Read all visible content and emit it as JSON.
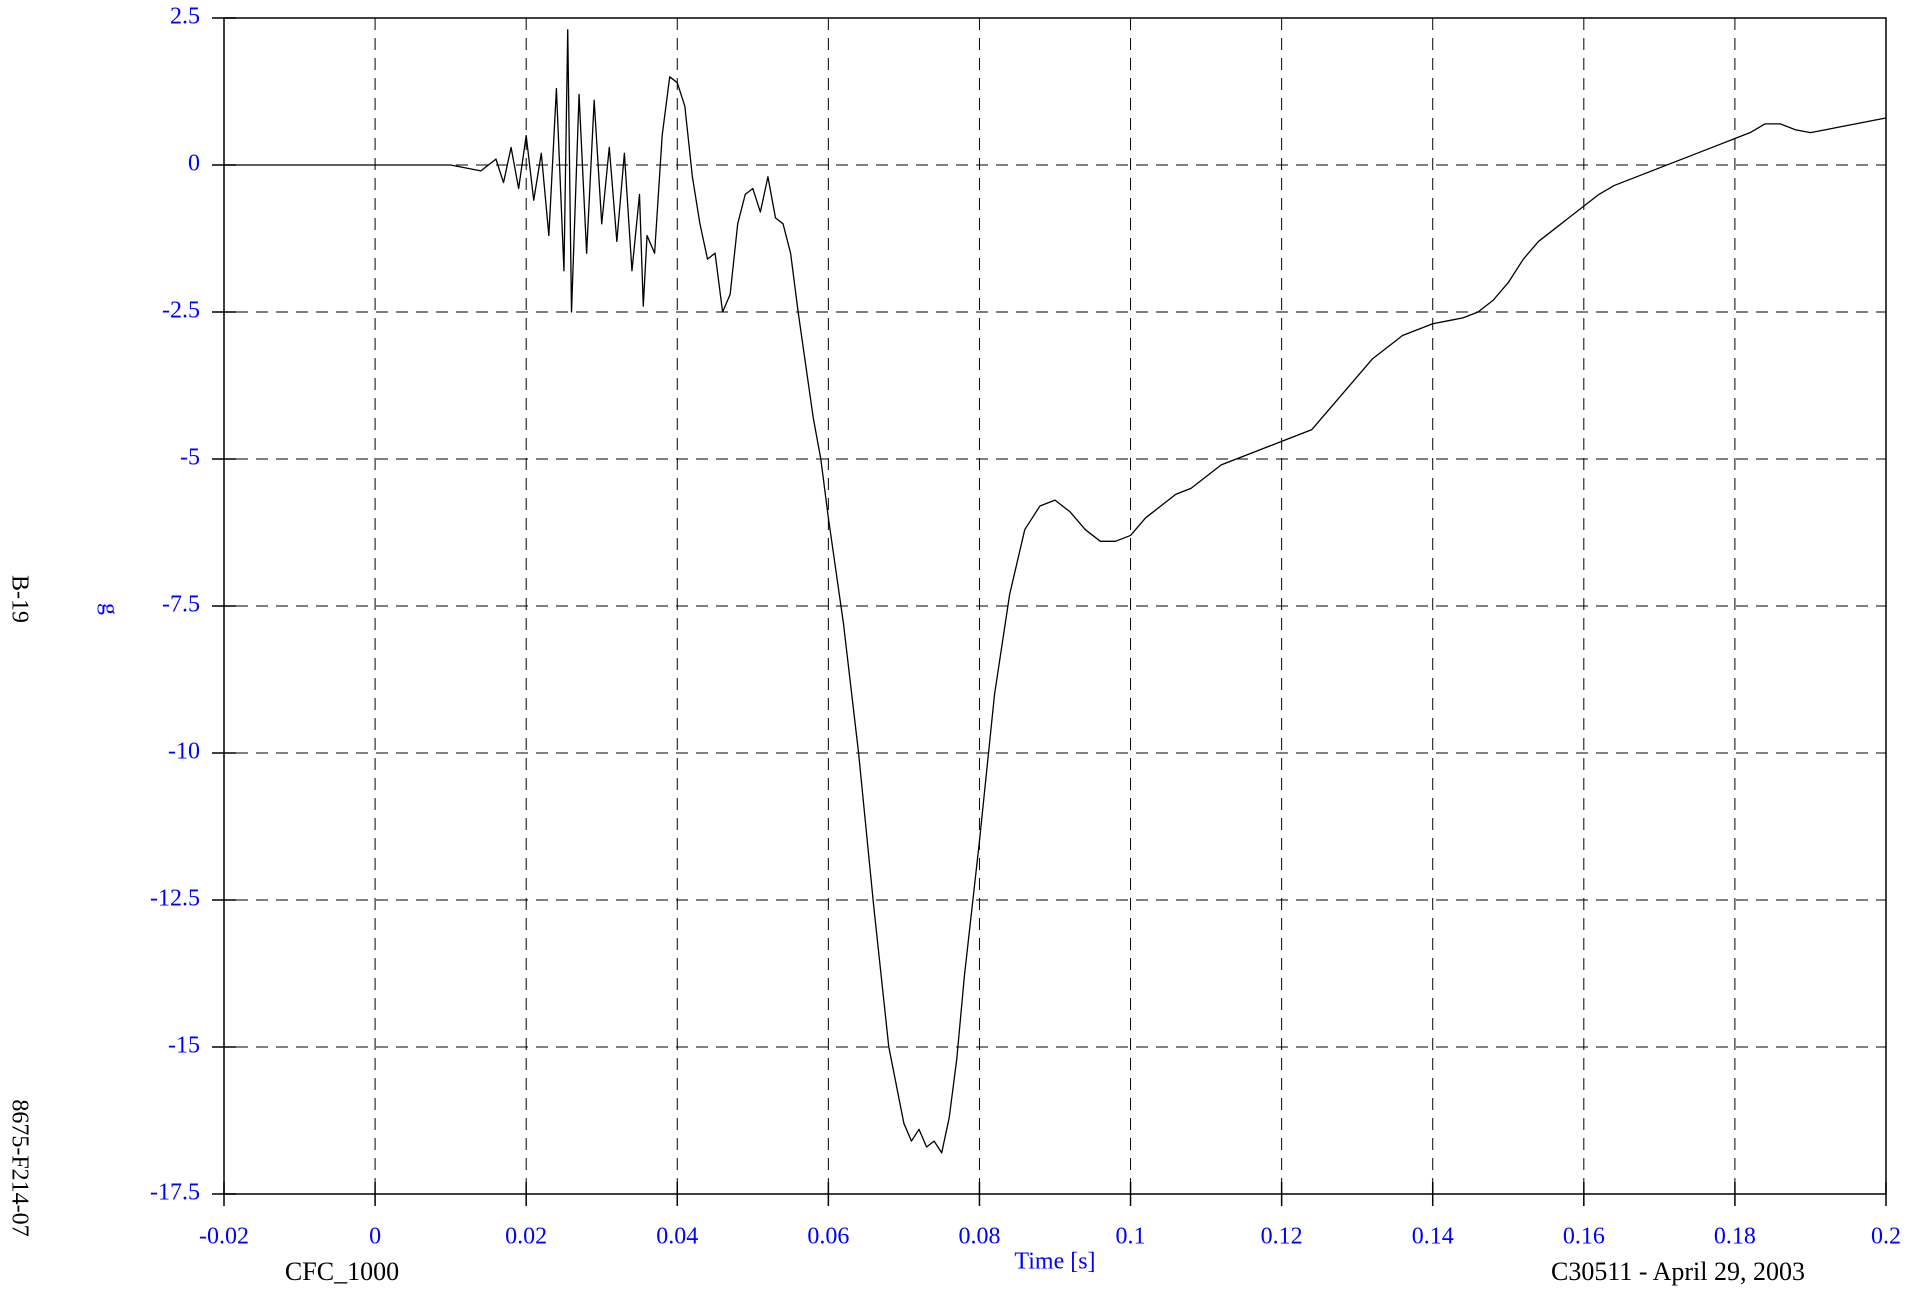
{
  "chart_data": {
    "type": "line",
    "x_label": "Time [s]",
    "y_label": "g",
    "left_label_top": "B-19",
    "left_label_bottom": "8675-F214-07",
    "footer_left": "CFC_1000",
    "footer_right": "C30511 - April 29, 2003",
    "xlim": [
      -0.02,
      0.2
    ],
    "ylim": [
      -17.5,
      2.5
    ],
    "xticks": [
      -0.02,
      0,
      0.02,
      0.04,
      0.06,
      0.08,
      0.1,
      0.12,
      0.14,
      0.16,
      0.18,
      0.2
    ],
    "yticks": [
      2.5,
      0,
      -2.5,
      -5,
      -7.5,
      -10,
      -12.5,
      -15,
      -17.5
    ],
    "grid": true,
    "x": [
      -0.02,
      -0.01,
      0,
      0.01,
      0.014,
      0.016,
      0.017,
      0.018,
      0.019,
      0.02,
      0.021,
      0.022,
      0.023,
      0.024,
      0.025,
      0.0255,
      0.026,
      0.027,
      0.028,
      0.029,
      0.03,
      0.031,
      0.032,
      0.033,
      0.034,
      0.035,
      0.0355,
      0.036,
      0.037,
      0.038,
      0.039,
      0.04,
      0.041,
      0.042,
      0.043,
      0.044,
      0.045,
      0.046,
      0.047,
      0.048,
      0.049,
      0.05,
      0.051,
      0.052,
      0.053,
      0.054,
      0.055,
      0.056,
      0.057,
      0.058,
      0.059,
      0.06,
      0.062,
      0.064,
      0.066,
      0.068,
      0.07,
      0.071,
      0.072,
      0.073,
      0.074,
      0.075,
      0.076,
      0.077,
      0.078,
      0.08,
      0.082,
      0.084,
      0.086,
      0.088,
      0.09,
      0.092,
      0.094,
      0.096,
      0.098,
      0.1,
      0.102,
      0.104,
      0.106,
      0.108,
      0.11,
      0.112,
      0.114,
      0.116,
      0.118,
      0.12,
      0.122,
      0.124,
      0.126,
      0.128,
      0.13,
      0.132,
      0.134,
      0.136,
      0.138,
      0.14,
      0.142,
      0.144,
      0.146,
      0.148,
      0.15,
      0.152,
      0.154,
      0.156,
      0.158,
      0.16,
      0.162,
      0.164,
      0.166,
      0.168,
      0.17,
      0.172,
      0.174,
      0.176,
      0.178,
      0.18,
      0.182,
      0.184,
      0.186,
      0.188,
      0.19,
      0.192,
      0.194,
      0.196,
      0.198,
      0.2
    ],
    "series": [
      {
        "color": "#000000",
        "values": [
          0,
          0,
          0,
          0,
          -0.1,
          0.1,
          -0.3,
          0.3,
          -0.4,
          0.5,
          -0.6,
          0.2,
          -1.2,
          1.3,
          -1.8,
          2.3,
          -2.5,
          1.2,
          -1.5,
          1.1,
          -1.0,
          0.3,
          -1.3,
          0.2,
          -1.8,
          -0.5,
          -2.4,
          -1.2,
          -1.5,
          0.5,
          1.5,
          1.4,
          1.0,
          -0.2,
          -1.0,
          -1.6,
          -1.5,
          -2.5,
          -2.2,
          -1.0,
          -0.5,
          -0.4,
          -0.8,
          -0.2,
          -0.9,
          -1.0,
          -1.5,
          -2.5,
          -3.4,
          -4.3,
          -5.0,
          -6.0,
          -7.8,
          -10.0,
          -12.6,
          -15.0,
          -16.3,
          -16.6,
          -16.4,
          -16.7,
          -16.6,
          -16.8,
          -16.2,
          -15.2,
          -13.8,
          -11.5,
          -9.0,
          -7.3,
          -6.2,
          -5.8,
          -5.7,
          -5.9,
          -6.2,
          -6.4,
          -6.4,
          -6.3,
          -6.0,
          -5.8,
          -5.6,
          -5.5,
          -5.3,
          -5.1,
          -5.0,
          -4.9,
          -4.8,
          -4.7,
          -4.6,
          -4.5,
          -4.2,
          -3.9,
          -3.6,
          -3.3,
          -3.1,
          -2.9,
          -2.8,
          -2.7,
          -2.65,
          -2.6,
          -2.5,
          -2.3,
          -2.0,
          -1.6,
          -1.3,
          -1.1,
          -0.9,
          -0.7,
          -0.5,
          -0.35,
          -0.25,
          -0.15,
          -0.05,
          0.05,
          0.15,
          0.25,
          0.35,
          0.45,
          0.55,
          0.7,
          0.7,
          0.6,
          0.55,
          0.6,
          0.65,
          0.7,
          0.75,
          0.8
        ]
      }
    ]
  }
}
